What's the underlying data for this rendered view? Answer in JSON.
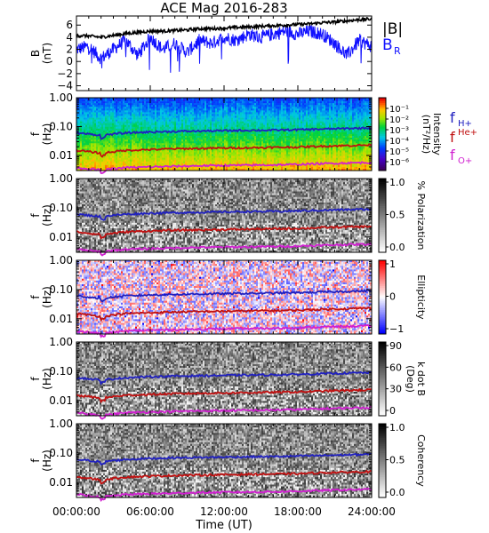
{
  "title": "ACE Mag 2016-283",
  "x_axis": {
    "label": "Time (UT)",
    "ticks": [
      "00:00:00",
      "06:00:00",
      "12:00:00",
      "18:00:00",
      "24:00:00"
    ],
    "range_hours": [
      0,
      24
    ]
  },
  "legend_top": {
    "btotal_label": "|B|",
    "br_label": "B",
    "br_sub": "R",
    "btotal_color": "#000000",
    "br_color": "#1010ff"
  },
  "freq_legend": {
    "h_label": "f",
    "h_sub": "H+",
    "he_label": "f",
    "he_sup": "He+",
    "o_label": "f",
    "o_sub": "O+",
    "h_color": "#2020c0",
    "he_color": "#c01010",
    "o_color": "#d020d0"
  },
  "panels": [
    {
      "ylabel": "B",
      "yunit": "(nT)",
      "ticks": [
        "6",
        "4",
        "2",
        "0",
        "−2",
        "−4"
      ],
      "colorbar": null
    },
    {
      "ylabel": "f",
      "yunit": "(Hz)",
      "ticks": [
        "1.00",
        "0.10",
        "0.01"
      ],
      "colorbar": {
        "type": "rainbow",
        "label": "Intensity",
        "label2": "(nT²/Hz)",
        "ticks": [
          "10⁻¹",
          "10⁻²",
          "10⁻³",
          "10⁻⁴",
          "10⁻⁵",
          "10⁻⁶"
        ]
      }
    },
    {
      "ylabel": "f",
      "yunit": "(Hz)",
      "ticks": [
        "1.00",
        "0.10",
        "0.01"
      ],
      "colorbar": {
        "type": "gray",
        "label": "% Polarization",
        "ticks": [
          "1.0",
          "0.5",
          "0.0"
        ]
      }
    },
    {
      "ylabel": "f",
      "yunit": "(Hz)",
      "ticks": [
        "1.00",
        "0.10",
        "0.01"
      ],
      "colorbar": {
        "type": "redblue",
        "label": "Ellipticity",
        "ticks": [
          "1",
          "0",
          "−1"
        ]
      }
    },
    {
      "ylabel": "f",
      "yunit": "(Hz)",
      "ticks": [
        "1.00",
        "0.10",
        "0.01"
      ],
      "colorbar": {
        "type": "gray",
        "label": "k dot B",
        "label2": "(Deg)",
        "ticks": [
          "90",
          "60",
          "30",
          "0"
        ]
      }
    },
    {
      "ylabel": "f",
      "yunit": "(Hz)",
      "ticks": [
        "1.00",
        "0.10",
        "0.01"
      ],
      "colorbar": {
        "type": "gray",
        "label": "Coherency",
        "ticks": [
          "1.0",
          "0.5",
          "0.0"
        ]
      }
    }
  ],
  "chart_data": {
    "type": "line",
    "title": "ACE Mag 2016-283",
    "xlabel": "Time (UT)",
    "xlim_hours": [
      0,
      24
    ],
    "b_panel": {
      "ylabel": "B (nT)",
      "ylim": [
        -4.8,
        7.5
      ],
      "x_hours": [
        0,
        1,
        2,
        3,
        4,
        5,
        6,
        7,
        8,
        9,
        10,
        11,
        12,
        13,
        14,
        15,
        16,
        17,
        18,
        19,
        20,
        21,
        22,
        23,
        24
      ],
      "series": [
        {
          "name": "|B|",
          "values": [
            4.3,
            4.2,
            4.0,
            4.3,
            4.6,
            4.8,
            5.0,
            5.0,
            5.1,
            5.2,
            5.4,
            5.4,
            5.5,
            5.6,
            5.7,
            5.8,
            5.9,
            6.0,
            6.1,
            6.2,
            6.4,
            6.5,
            6.7,
            6.9,
            7.0
          ]
        },
        {
          "name": "B_R",
          "values": [
            2.0,
            2.5,
            0.5,
            2.0,
            3.5,
            1.0,
            4.0,
            2.0,
            3.0,
            1.5,
            3.5,
            3.0,
            4.0,
            3.5,
            4.5,
            4.0,
            4.5,
            5.0,
            4.5,
            5.0,
            4.5,
            3.0,
            1.0,
            3.5,
            2.5
          ]
        }
      ]
    },
    "freq_panels": {
      "ylabel": "f (Hz)",
      "yscale": "log",
      "ylim": [
        0.003,
        1.0
      ],
      "x_hours": [
        0,
        2,
        4,
        6,
        8,
        10,
        12,
        14,
        16,
        18,
        20,
        22,
        24
      ],
      "series": [
        {
          "name": "f_H+",
          "values": [
            0.06,
            0.05,
            0.06,
            0.065,
            0.068,
            0.07,
            0.072,
            0.074,
            0.075,
            0.078,
            0.082,
            0.086,
            0.09
          ]
        },
        {
          "name": "f_He+",
          "values": [
            0.015,
            0.012,
            0.015,
            0.016,
            0.017,
            0.0175,
            0.018,
            0.0185,
            0.019,
            0.0195,
            0.021,
            0.022,
            0.023
          ]
        },
        {
          "name": "f_O+",
          "values": [
            0.0038,
            0.0031,
            0.0038,
            0.004,
            0.0042,
            0.0044,
            0.0045,
            0.0046,
            0.0047,
            0.0049,
            0.0052,
            0.0055,
            0.0057
          ]
        }
      ]
    }
  }
}
